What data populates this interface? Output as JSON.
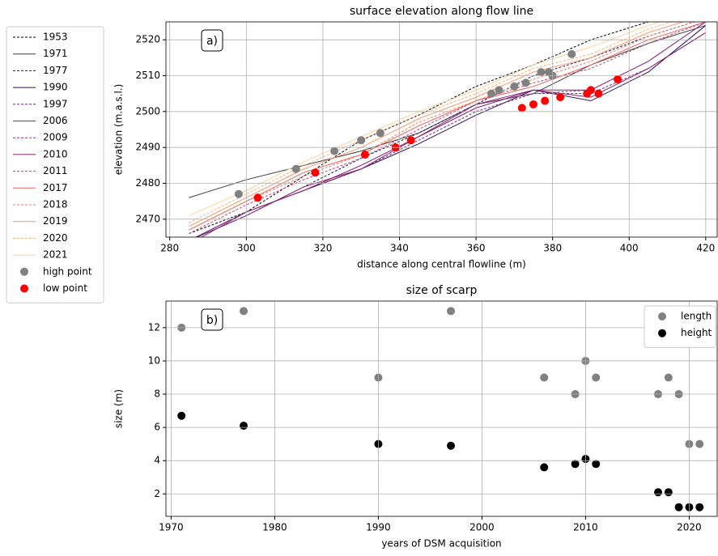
{
  "chart_data": [
    {
      "type": "line",
      "title": "surface elevation along flow line",
      "annotation": "a)",
      "xlabel": "distance along central flowline (m)",
      "ylabel": "elevation (m.a.s.l.)",
      "xlim": [
        279,
        423
      ],
      "ylim": [
        2465,
        2525
      ],
      "xticks": [
        280,
        300,
        320,
        340,
        360,
        380,
        400,
        420
      ],
      "yticks": [
        2470,
        2480,
        2490,
        2500,
        2510,
        2520
      ],
      "grid": true,
      "legend": "outside left",
      "x": [
        285,
        300,
        315,
        330,
        345,
        360,
        375,
        390,
        405,
        420
      ],
      "series": [
        {
          "name": "1953",
          "color": "#000000",
          "linestyle": "dashed",
          "values": [
            2466,
            2472,
            2482,
            2492,
            2499,
            2507,
            2513,
            2520,
            2525,
            2529
          ]
        },
        {
          "name": "1971",
          "color": "#3b3b3b",
          "linestyle": "solid",
          "values": [
            2476,
            2481,
            2485,
            2489,
            2494,
            2502,
            2505,
            2513,
            2519,
            2524
          ]
        },
        {
          "name": "1977",
          "color": "#1b1650",
          "linestyle": "dashed",
          "values": [
            2464,
            2471,
            2479,
            2487,
            2494,
            2502,
            2510,
            2515,
            2521,
            2526
          ]
        },
        {
          "name": "1990",
          "color": "#2c115f",
          "linestyle": "solid",
          "values": [
            2464,
            2472,
            2478,
            2484,
            2491,
            2499,
            2506,
            2503,
            2511,
            2524
          ]
        },
        {
          "name": "1997",
          "color": "#721f81",
          "linestyle": "dashed",
          "values": [
            2464,
            2472,
            2478,
            2484,
            2492,
            2500,
            2505,
            2505,
            2512,
            2522
          ]
        },
        {
          "name": "2006",
          "color": "#822681",
          "linestyle": "solid",
          "values": [
            2463,
            2472,
            2478,
            2485,
            2493,
            2502,
            2506,
            2506,
            2514,
            2525
          ]
        },
        {
          "name": "2009",
          "color": "#9e2f7f",
          "linestyle": "dashed",
          "values": [
            2464,
            2472,
            2478,
            2485,
            2493,
            2502,
            2505,
            2506,
            2514,
            2525
          ]
        },
        {
          "name": "2010",
          "color": "#8a226a",
          "linestyle": "solid",
          "values": [
            2464,
            2471,
            2479,
            2484,
            2493,
            2501,
            2506,
            2504,
            2512,
            2522
          ]
        },
        {
          "name": "2011",
          "color": "#cd4071",
          "linestyle": "dashed",
          "values": [
            2466,
            2474,
            2481,
            2487,
            2495,
            2503,
            2508,
            2512,
            2519,
            2525
          ]
        },
        {
          "name": "2017",
          "color": "#f1605d",
          "linestyle": "solid",
          "values": [
            2467,
            2475,
            2483,
            2488,
            2496,
            2503,
            2507,
            2513,
            2520,
            2525
          ]
        },
        {
          "name": "2018",
          "color": "#f07f60",
          "linestyle": "dashed",
          "values": [
            2467,
            2475,
            2482,
            2488,
            2497,
            2503,
            2509,
            2514,
            2521,
            2526
          ]
        },
        {
          "name": "2019",
          "color": "#fd9668",
          "linestyle": "solid",
          "values": [
            2468,
            2476,
            2484,
            2490,
            2498,
            2504,
            2511,
            2515,
            2522,
            2527
          ]
        },
        {
          "name": "2020",
          "color": "#feb078",
          "linestyle": "dashed",
          "values": [
            2469,
            2477,
            2485,
            2492,
            2499,
            2505,
            2512,
            2516,
            2523,
            2528
          ]
        },
        {
          "name": "2021",
          "color": "#fdd49e",
          "linestyle": "solid",
          "values": [
            2471,
            2478,
            2486,
            2493,
            2500,
            2506,
            2513,
            2518,
            2524,
            2529
          ]
        }
      ],
      "points": [
        {
          "name": "high point",
          "color": "#808080",
          "x": [
            298,
            313,
            323,
            330,
            335,
            364,
            366,
            370,
            373,
            377,
            379,
            380,
            385
          ],
          "values": [
            2477,
            2484,
            2489,
            2492,
            2494,
            2505,
            2506,
            2507,
            2508,
            2511,
            2511,
            2510,
            2516
          ]
        },
        {
          "name": "low point",
          "color": "#ff0000",
          "x": [
            303,
            318,
            331,
            339,
            343,
            372,
            375,
            378,
            382,
            389,
            390,
            392,
            397
          ],
          "values": [
            2476,
            2483,
            2488,
            2490,
            2492,
            2501,
            2502,
            2503,
            2504,
            2505,
            2506,
            2505,
            2509
          ]
        }
      ]
    },
    {
      "type": "scatter",
      "title": "size of scarp",
      "annotation": "b)",
      "xlabel": "years of DSM acquisition",
      "ylabel": "size (m)",
      "xlim": [
        1969.5,
        2022.7
      ],
      "ylim": [
        0.65,
        13.6
      ],
      "xticks": [
        1970,
        1980,
        1990,
        2000,
        2010,
        2020
      ],
      "yticks": [
        2,
        4,
        6,
        8,
        10,
        12
      ],
      "grid": true,
      "legend": "upper right",
      "points": [
        {
          "name": "length",
          "color": "#808080",
          "x": [
            1971,
            1977,
            1990,
            1997,
            2006,
            2009,
            2010,
            2011,
            2017,
            2018,
            2019,
            2020,
            2021
          ],
          "values": [
            12,
            13,
            9,
            13,
            9,
            8,
            10,
            9,
            8,
            9,
            8,
            5,
            5
          ]
        },
        {
          "name": "height",
          "color": "#000000",
          "x": [
            1971,
            1977,
            1990,
            1997,
            2006,
            2009,
            2010,
            2011,
            2017,
            2018,
            2019,
            2020,
            2021
          ],
          "values": [
            6.7,
            6.1,
            5.0,
            4.9,
            3.6,
            3.8,
            4.1,
            3.8,
            2.1,
            2.1,
            1.2,
            1.2,
            1.2
          ]
        }
      ]
    }
  ]
}
